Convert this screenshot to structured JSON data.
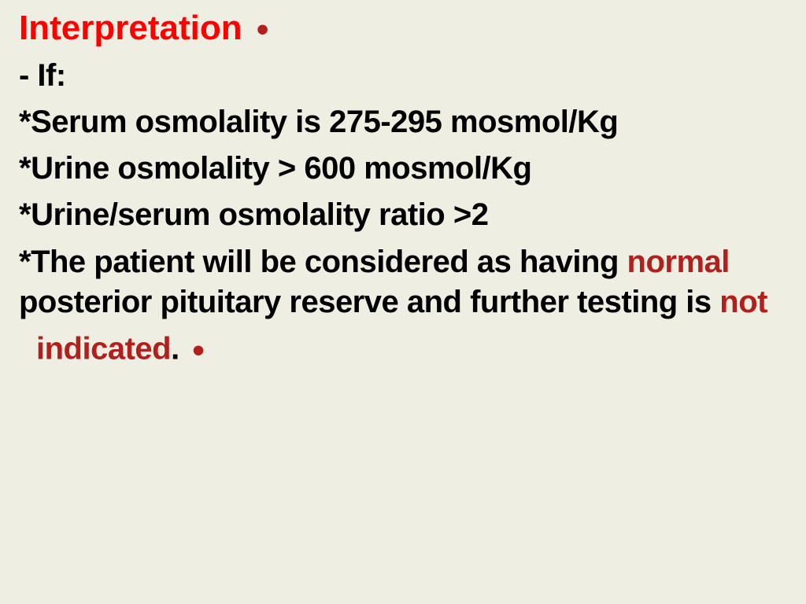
{
  "colors": {
    "background": "#eeeee2",
    "body_text": "#000000",
    "heading_red": "#ff0000",
    "inline_red": "#b2201e"
  },
  "typography": {
    "family": "Arial Black / Arial Bold",
    "heading_fontsize_pt": 33,
    "body_fontsize_pt": 30,
    "weight": 900
  },
  "heading": {
    "text": "Interpretation",
    "bullet": "•"
  },
  "lines": {
    "if": "- If:",
    "serum": "*Serum osmolality is 275-295 mosmol/Kg",
    "urine": "*Urine osmolality > 600 mosmol/Kg",
    "ratio": "*Urine/serum osmolality ratio >2",
    "conclusion_part1": "*The patient will be considered as having ",
    "conclusion_normal": "normal",
    "conclusion_part2": " posterior pituitary reserve and further testing is ",
    "conclusion_not": "not",
    "indicated": "indicated",
    "period": ".",
    "bullet2": "•"
  }
}
